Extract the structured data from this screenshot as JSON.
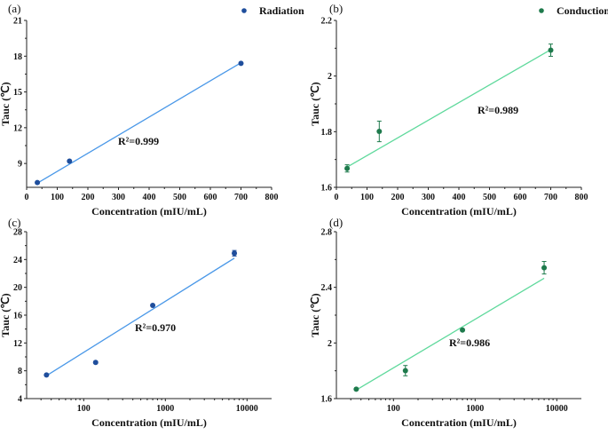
{
  "chart_data": [
    {
      "panel": "(a)",
      "type": "scatter",
      "xlabel": "Concentration (mIU/mL)",
      "ylabel": "Tauc (℃)",
      "xscale": "linear",
      "xlim": [
        0,
        800
      ],
      "ylim": [
        7,
        21
      ],
      "xticks": [
        0,
        100,
        200,
        300,
        400,
        500,
        600,
        700,
        800
      ],
      "yticks": [
        9,
        12,
        15,
        18,
        21
      ],
      "legend": "top-right",
      "grid": false,
      "series": [
        {
          "name": "Radiation",
          "color": "#1f4e9c",
          "x": [
            35,
            140,
            700
          ],
          "y": [
            7.4,
            9.2,
            17.4
          ],
          "err": [
            0.1,
            0.15,
            0.1
          ]
        }
      ],
      "fit": {
        "color": "#4a98e8",
        "x": [
          35,
          700
        ],
        "y": [
          7.35,
          17.45
        ]
      },
      "annotation": "R²=0.999"
    },
    {
      "panel": "(b)",
      "type": "scatter",
      "xlabel": "Concentration (mIU/mL)",
      "ylabel": "Tauc (℃)",
      "xscale": "linear",
      "xlim": [
        0,
        800
      ],
      "ylim": [
        1.6,
        2.2
      ],
      "xticks": [
        0,
        100,
        200,
        300,
        400,
        500,
        600,
        700,
        800
      ],
      "yticks": [
        1.6,
        1.8,
        2.0,
        2.2
      ],
      "legend": "top-right",
      "grid": false,
      "series": [
        {
          "name": "Conduction",
          "color": "#1e7a4c",
          "x": [
            35,
            140,
            700
          ],
          "y": [
            1.668,
            1.801,
            2.093
          ],
          "err": [
            0.013,
            0.037,
            0.022
          ]
        }
      ],
      "fit": {
        "color": "#5fd99c",
        "x": [
          35,
          700
        ],
        "y": [
          1.673,
          2.095
        ]
      },
      "annotation": "R²=0.989"
    },
    {
      "panel": "(c)",
      "type": "scatter",
      "xlabel": "Concentration (mIU/mL)",
      "ylabel": "Tauc (℃)",
      "xscale": "log",
      "xlim": [
        20,
        20000
      ],
      "ylim": [
        4,
        28
      ],
      "xticks": [
        100,
        1000,
        10000
      ],
      "yticks": [
        4,
        8,
        12,
        16,
        20,
        24,
        28
      ],
      "grid": false,
      "series": [
        {
          "color": "#1f4e9c",
          "x": [
            35,
            140,
            700,
            7000
          ],
          "y": [
            7.4,
            9.2,
            17.4,
            24.9
          ],
          "err": [
            0.1,
            0.15,
            0.1,
            0.4
          ]
        }
      ],
      "fit": {
        "color": "#4a98e8",
        "x": [
          35,
          7000
        ],
        "y": [
          7.3,
          24.2
        ]
      },
      "annotation": "R²=0.970"
    },
    {
      "panel": "(d)",
      "type": "scatter",
      "xlabel": "Concentration (mIU/mL)",
      "ylabel": "Tauc (℃)",
      "xscale": "log",
      "xlim": [
        20,
        20000
      ],
      "ylim": [
        1.6,
        2.8
      ],
      "xticks": [
        100,
        1000,
        10000
      ],
      "yticks": [
        1.6,
        2.0,
        2.4,
        2.8
      ],
      "grid": false,
      "series": [
        {
          "color": "#1e7a4c",
          "x": [
            35,
            140,
            700,
            7000
          ],
          "y": [
            1.668,
            1.801,
            2.093,
            2.541
          ],
          "err": [
            0.008,
            0.037,
            0.015,
            0.045
          ]
        }
      ],
      "fit": {
        "color": "#5fd99c",
        "x": [
          35,
          7000
        ],
        "y": [
          1.662,
          2.465
        ]
      },
      "annotation": "R²=0.986"
    }
  ]
}
